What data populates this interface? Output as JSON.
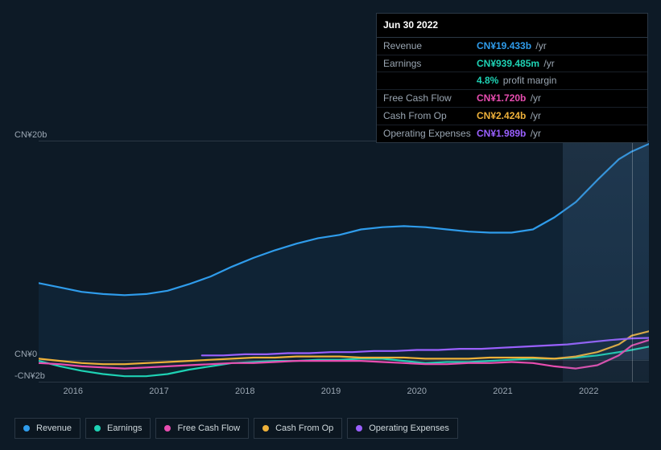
{
  "colors": {
    "revenue": "#2f9ceb",
    "earnings": "#1ed2b4",
    "fcf": "#e84db0",
    "cfo": "#eeb13a",
    "opex": "#9a60ff",
    "bg": "#0d1a26",
    "grid": "#2a3744",
    "text": "#cfd8dc",
    "muted": "#9aa6b2"
  },
  "tooltip": {
    "date": "Jun 30 2022",
    "rows": [
      {
        "label": "Revenue",
        "value": "CN¥19.433b",
        "unit": "/yr",
        "colorKey": "revenue"
      },
      {
        "label": "Earnings",
        "value": "CN¥939.485m",
        "unit": "/yr",
        "colorKey": "earnings"
      },
      {
        "label": "",
        "value": "4.8%",
        "unit": "profit margin",
        "colorKey": "earnings"
      },
      {
        "label": "Free Cash Flow",
        "value": "CN¥1.720b",
        "unit": "/yr",
        "colorKey": "fcf"
      },
      {
        "label": "Cash From Op",
        "value": "CN¥2.424b",
        "unit": "/yr",
        "colorKey": "cfo"
      },
      {
        "label": "Operating Expenses",
        "value": "CN¥1.989b",
        "unit": "/yr",
        "colorKey": "opex"
      }
    ]
  },
  "chart": {
    "type": "line",
    "ylim": [
      -2,
      20
    ],
    "yticks": [
      {
        "v": 20,
        "label": "CN¥20b"
      },
      {
        "v": 0,
        "label": "CN¥0"
      },
      {
        "v": -2,
        "label": "-CN¥2b"
      }
    ],
    "xlim": [
      2015.6,
      2022.7
    ],
    "xticks": [
      2016,
      2017,
      2018,
      2019,
      2020,
      2021,
      2022
    ],
    "highlight_from_x": 2021.7,
    "cursor_x": 2022.5,
    "line_width": 2.2,
    "series": [
      {
        "key": "revenue",
        "label": "Revenue",
        "colorKey": "revenue",
        "fill": true,
        "fill_opacity": 0.08,
        "points": [
          [
            2015.6,
            7.0
          ],
          [
            2015.85,
            6.6
          ],
          [
            2016.1,
            6.2
          ],
          [
            2016.35,
            6.0
          ],
          [
            2016.6,
            5.9
          ],
          [
            2016.85,
            6.0
          ],
          [
            2017.1,
            6.3
          ],
          [
            2017.35,
            6.9
          ],
          [
            2017.6,
            7.6
          ],
          [
            2017.85,
            8.5
          ],
          [
            2018.1,
            9.3
          ],
          [
            2018.35,
            10.0
          ],
          [
            2018.6,
            10.6
          ],
          [
            2018.85,
            11.1
          ],
          [
            2019.1,
            11.4
          ],
          [
            2019.35,
            11.9
          ],
          [
            2019.6,
            12.1
          ],
          [
            2019.85,
            12.2
          ],
          [
            2020.1,
            12.1
          ],
          [
            2020.35,
            11.9
          ],
          [
            2020.6,
            11.7
          ],
          [
            2020.85,
            11.6
          ],
          [
            2021.1,
            11.6
          ],
          [
            2021.35,
            11.9
          ],
          [
            2021.6,
            13.0
          ],
          [
            2021.85,
            14.4
          ],
          [
            2022.1,
            16.4
          ],
          [
            2022.35,
            18.3
          ],
          [
            2022.5,
            19.0
          ],
          [
            2022.7,
            19.7
          ]
        ]
      },
      {
        "key": "earnings",
        "label": "Earnings",
        "colorKey": "earnings",
        "fill": true,
        "fill_opacity": 0.06,
        "points": [
          [
            2015.6,
            -0.1
          ],
          [
            2015.85,
            -0.6
          ],
          [
            2016.1,
            -1.0
          ],
          [
            2016.35,
            -1.3
          ],
          [
            2016.6,
            -1.5
          ],
          [
            2016.85,
            -1.5
          ],
          [
            2017.1,
            -1.3
          ],
          [
            2017.35,
            -0.9
          ],
          [
            2017.6,
            -0.6
          ],
          [
            2017.85,
            -0.3
          ],
          [
            2018.1,
            -0.2
          ],
          [
            2018.35,
            -0.1
          ],
          [
            2018.6,
            -0.1
          ],
          [
            2018.85,
            0.0
          ],
          [
            2019.1,
            0.0
          ],
          [
            2019.35,
            0.1
          ],
          [
            2019.6,
            0.1
          ],
          [
            2019.85,
            -0.1
          ],
          [
            2020.1,
            -0.3
          ],
          [
            2020.35,
            -0.2
          ],
          [
            2020.6,
            -0.2
          ],
          [
            2020.85,
            -0.1
          ],
          [
            2021.1,
            0.0
          ],
          [
            2021.35,
            0.1
          ],
          [
            2021.6,
            0.1
          ],
          [
            2021.85,
            0.2
          ],
          [
            2022.1,
            0.4
          ],
          [
            2022.35,
            0.7
          ],
          [
            2022.5,
            0.9
          ],
          [
            2022.7,
            1.2
          ]
        ]
      },
      {
        "key": "fcf",
        "label": "Free Cash Flow",
        "colorKey": "fcf",
        "fill": true,
        "fill_opacity": 0.05,
        "points": [
          [
            2015.6,
            -0.3
          ],
          [
            2015.85,
            -0.4
          ],
          [
            2016.1,
            -0.6
          ],
          [
            2016.35,
            -0.7
          ],
          [
            2016.6,
            -0.8
          ],
          [
            2016.85,
            -0.7
          ],
          [
            2017.1,
            -0.6
          ],
          [
            2017.35,
            -0.5
          ],
          [
            2017.6,
            -0.4
          ],
          [
            2017.85,
            -0.3
          ],
          [
            2018.1,
            -0.3
          ],
          [
            2018.35,
            -0.2
          ],
          [
            2018.6,
            -0.1
          ],
          [
            2018.85,
            -0.1
          ],
          [
            2019.1,
            -0.1
          ],
          [
            2019.35,
            -0.1
          ],
          [
            2019.6,
            -0.2
          ],
          [
            2019.85,
            -0.3
          ],
          [
            2020.1,
            -0.4
          ],
          [
            2020.35,
            -0.4
          ],
          [
            2020.6,
            -0.3
          ],
          [
            2020.85,
            -0.3
          ],
          [
            2021.1,
            -0.2
          ],
          [
            2021.35,
            -0.3
          ],
          [
            2021.6,
            -0.6
          ],
          [
            2021.85,
            -0.8
          ],
          [
            2022.1,
            -0.5
          ],
          [
            2022.35,
            0.4
          ],
          [
            2022.5,
            1.3
          ],
          [
            2022.7,
            1.8
          ]
        ]
      },
      {
        "key": "cfo",
        "label": "Cash From Op",
        "colorKey": "cfo",
        "fill": false,
        "points": [
          [
            2015.6,
            0.1
          ],
          [
            2015.85,
            -0.1
          ],
          [
            2016.1,
            -0.3
          ],
          [
            2016.35,
            -0.4
          ],
          [
            2016.6,
            -0.4
          ],
          [
            2016.85,
            -0.3
          ],
          [
            2017.1,
            -0.2
          ],
          [
            2017.35,
            -0.1
          ],
          [
            2017.6,
            0.0
          ],
          [
            2017.85,
            0.1
          ],
          [
            2018.1,
            0.2
          ],
          [
            2018.35,
            0.2
          ],
          [
            2018.6,
            0.3
          ],
          [
            2018.85,
            0.3
          ],
          [
            2019.1,
            0.3
          ],
          [
            2019.35,
            0.2
          ],
          [
            2019.6,
            0.2
          ],
          [
            2019.85,
            0.2
          ],
          [
            2020.1,
            0.1
          ],
          [
            2020.35,
            0.1
          ],
          [
            2020.6,
            0.1
          ],
          [
            2020.85,
            0.2
          ],
          [
            2021.1,
            0.2
          ],
          [
            2021.35,
            0.2
          ],
          [
            2021.6,
            0.1
          ],
          [
            2021.85,
            0.3
          ],
          [
            2022.1,
            0.7
          ],
          [
            2022.35,
            1.4
          ],
          [
            2022.5,
            2.2
          ],
          [
            2022.7,
            2.6
          ]
        ]
      },
      {
        "key": "opex",
        "label": "Operating Expenses",
        "colorKey": "opex",
        "fill": false,
        "points": [
          [
            2017.5,
            0.4
          ],
          [
            2017.75,
            0.4
          ],
          [
            2018.0,
            0.5
          ],
          [
            2018.25,
            0.5
          ],
          [
            2018.5,
            0.6
          ],
          [
            2018.75,
            0.6
          ],
          [
            2019.0,
            0.7
          ],
          [
            2019.25,
            0.7
          ],
          [
            2019.5,
            0.8
          ],
          [
            2019.75,
            0.8
          ],
          [
            2020.0,
            0.9
          ],
          [
            2020.25,
            0.9
          ],
          [
            2020.5,
            1.0
          ],
          [
            2020.75,
            1.0
          ],
          [
            2021.0,
            1.1
          ],
          [
            2021.25,
            1.2
          ],
          [
            2021.5,
            1.3
          ],
          [
            2021.75,
            1.4
          ],
          [
            2022.0,
            1.6
          ],
          [
            2022.25,
            1.8
          ],
          [
            2022.5,
            1.95
          ],
          [
            2022.7,
            2.0
          ]
        ]
      }
    ]
  },
  "legend": [
    {
      "label": "Revenue",
      "colorKey": "revenue"
    },
    {
      "label": "Earnings",
      "colorKey": "earnings"
    },
    {
      "label": "Free Cash Flow",
      "colorKey": "fcf"
    },
    {
      "label": "Cash From Op",
      "colorKey": "cfo"
    },
    {
      "label": "Operating Expenses",
      "colorKey": "opex"
    }
  ]
}
